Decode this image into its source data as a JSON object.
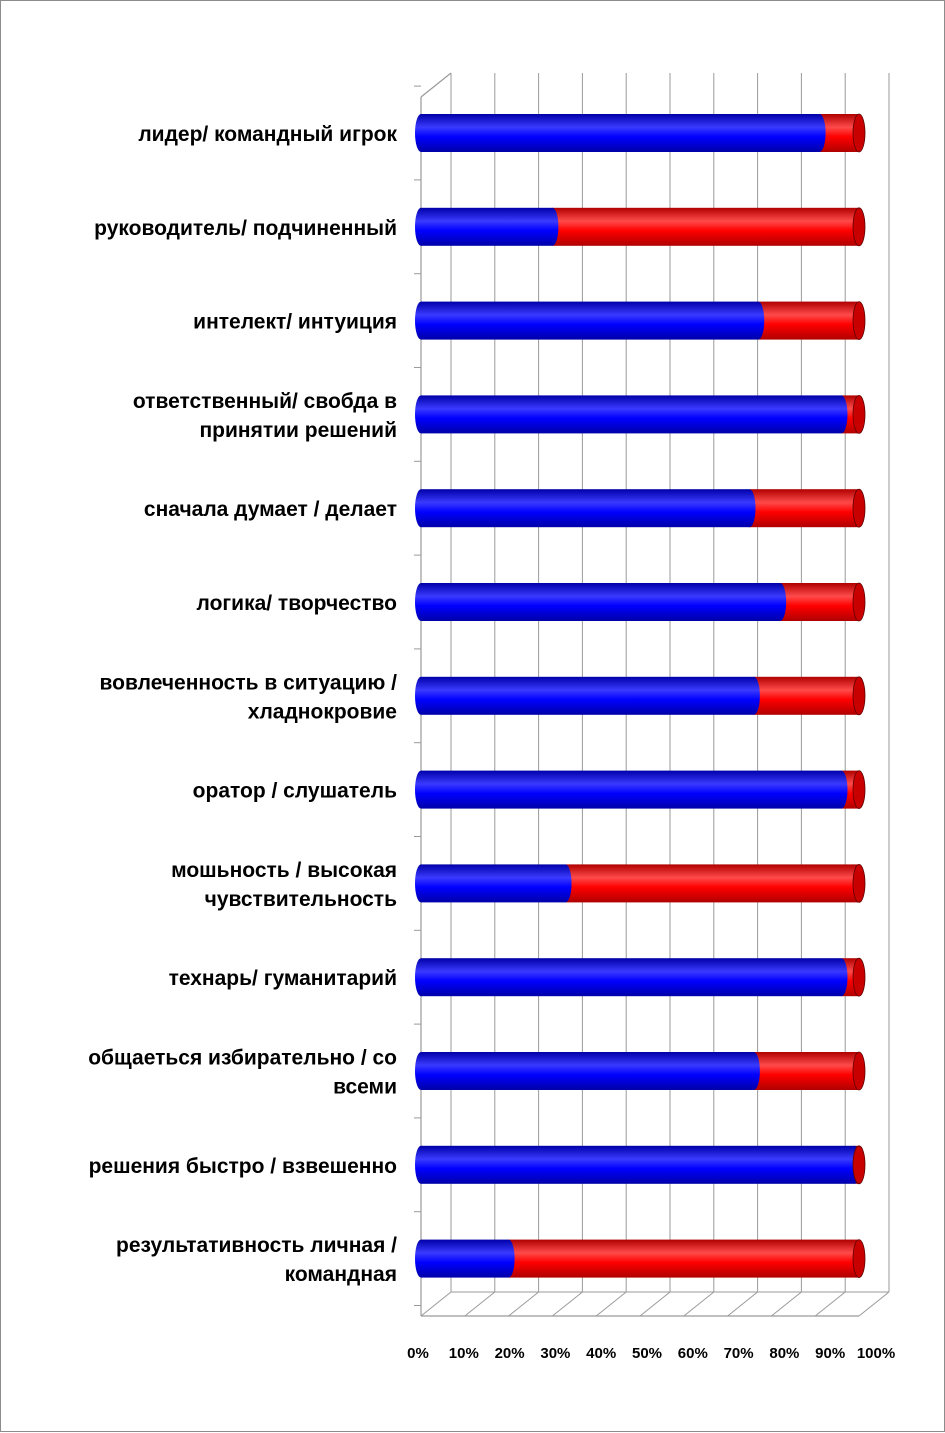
{
  "chart_data": {
    "type": "bar",
    "orientation": "horizontal",
    "stacked": "100%",
    "three_d": true,
    "title": "",
    "xlabel": "",
    "ylabel": "",
    "xlim": [
      0,
      100
    ],
    "x_ticks": [
      "0%",
      "10%",
      "20%",
      "30%",
      "40%",
      "50%",
      "60%",
      "70%",
      "80%",
      "90%",
      "100%"
    ],
    "grid": true,
    "legend": "none",
    "categories": [
      [
        "лидер/ командный игрок"
      ],
      [
        "руководитель/ подчиненный"
      ],
      [
        "интелект/ интуиция"
      ],
      [
        "ответственный/ свобда в",
        "принятии решений"
      ],
      [
        "сначала думает / делает"
      ],
      [
        "логика/ творчество"
      ],
      [
        "вовлеченность в ситуацию /",
        "хладнокровие"
      ],
      [
        "оратор / слушатель"
      ],
      [
        "мошьность / высокая",
        "чувствительность"
      ],
      [
        "технарь/ гуманитарий"
      ],
      [
        "общаеться избирательно / со",
        "всеми"
      ],
      [
        "решения быстро / взвешенно"
      ],
      [
        "результативность личная /",
        "командная"
      ]
    ],
    "series": [
      {
        "color": "#0000ff",
        "values": [
          91,
          30,
          77,
          96,
          75,
          82,
          76,
          96,
          33,
          96,
          76,
          99,
          20
        ]
      },
      {
        "color": "#ff0000",
        "values": [
          9,
          70,
          23,
          4,
          25,
          18,
          24,
          4,
          67,
          4,
          24,
          1,
          80
        ]
      }
    ]
  }
}
